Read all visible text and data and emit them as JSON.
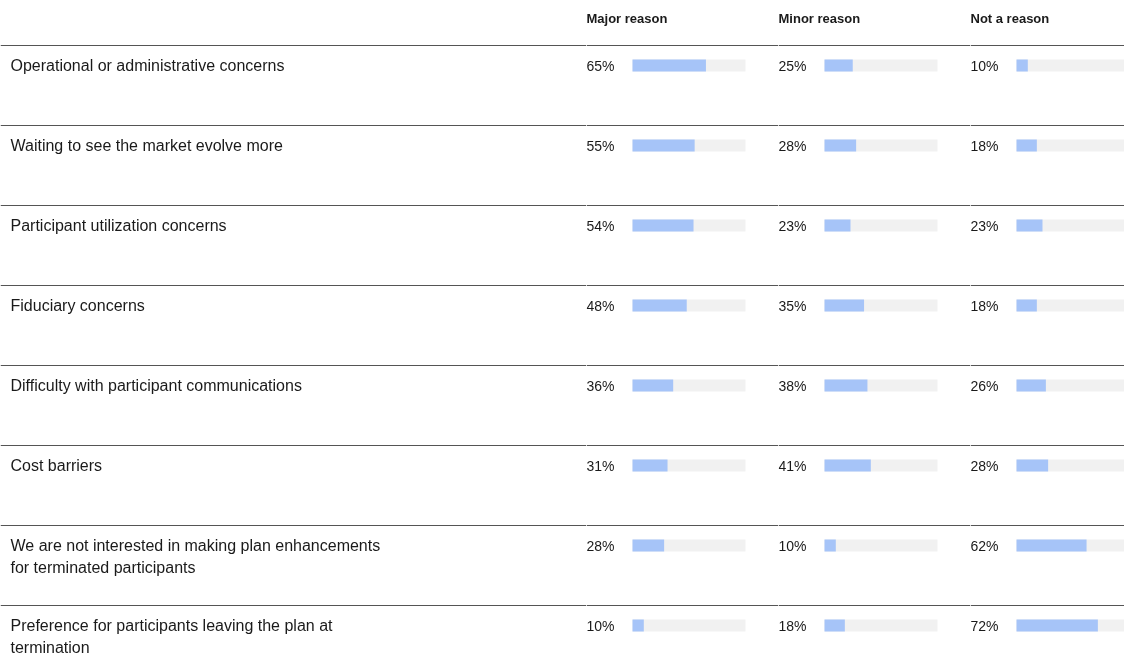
{
  "chart_data": [
    {
      "type": "bar",
      "orientation": "horizontal",
      "xlim": [
        0,
        100
      ],
      "tick_labels": "y",
      "grid": "y",
      "title": "Major reason",
      "categories": [
        "Operational or administrative concerns",
        "Waiting to see the market evolve more",
        "Participant utilization concerns",
        "Fiduciary concerns",
        "Difficulty with participant communications",
        "Cost barriers",
        "We are not interested in making plan enhancements for terminated participants",
        "Preference for participants leaving the plan at termination"
      ],
      "color": "#a6c4f8",
      "values": [
        65,
        55,
        54,
        48,
        36,
        31,
        28,
        10
      ],
      "value_labels": [
        "65%",
        "55%",
        "54%",
        "48%",
        "36%",
        "31%",
        "28%",
        "10%"
      ]
    },
    {
      "type": "bar",
      "orientation": "horizontal",
      "xlim": [
        0,
        100
      ],
      "tick_labels": false,
      "grid": "y",
      "title": "Minor reason",
      "categories": [
        "Operational or administrative concerns",
        "Waiting to see the market evolve more",
        "Participant utilization concerns",
        "Fiduciary concerns",
        "Difficulty with participant communications",
        "Cost barriers",
        "We are not interested in making plan enhancements for terminated participants",
        "Preference for participants leaving the plan at termination"
      ],
      "color": "#a6c4f8",
      "values": [
        25,
        28,
        23,
        35,
        38,
        41,
        10,
        18
      ],
      "value_labels": [
        "25%",
        "28%",
        "23%",
        "35%",
        "38%",
        "41%",
        "10%",
        "18%"
      ]
    },
    {
      "type": "bar",
      "orientation": "horizontal",
      "xlim": [
        0,
        100
      ],
      "tick_labels": false,
      "grid": "y",
      "title": "Not a reason",
      "categories": [
        "Operational or administrative concerns",
        "Waiting to see the market evolve more",
        "Participant utilization concerns",
        "Fiduciary concerns",
        "Difficulty with participant communications",
        "Cost barriers",
        "We are not interested in making plan enhancements for terminated participants",
        "Preference for participants leaving the plan at termination"
      ],
      "color": "#a6c4f8",
      "values": [
        10,
        18,
        23,
        18,
        26,
        28,
        62,
        72
      ],
      "value_labels": [
        "10%",
        "18%",
        "23%",
        "18%",
        "26%",
        "28%",
        "62%",
        "72%"
      ]
    }
  ]
}
